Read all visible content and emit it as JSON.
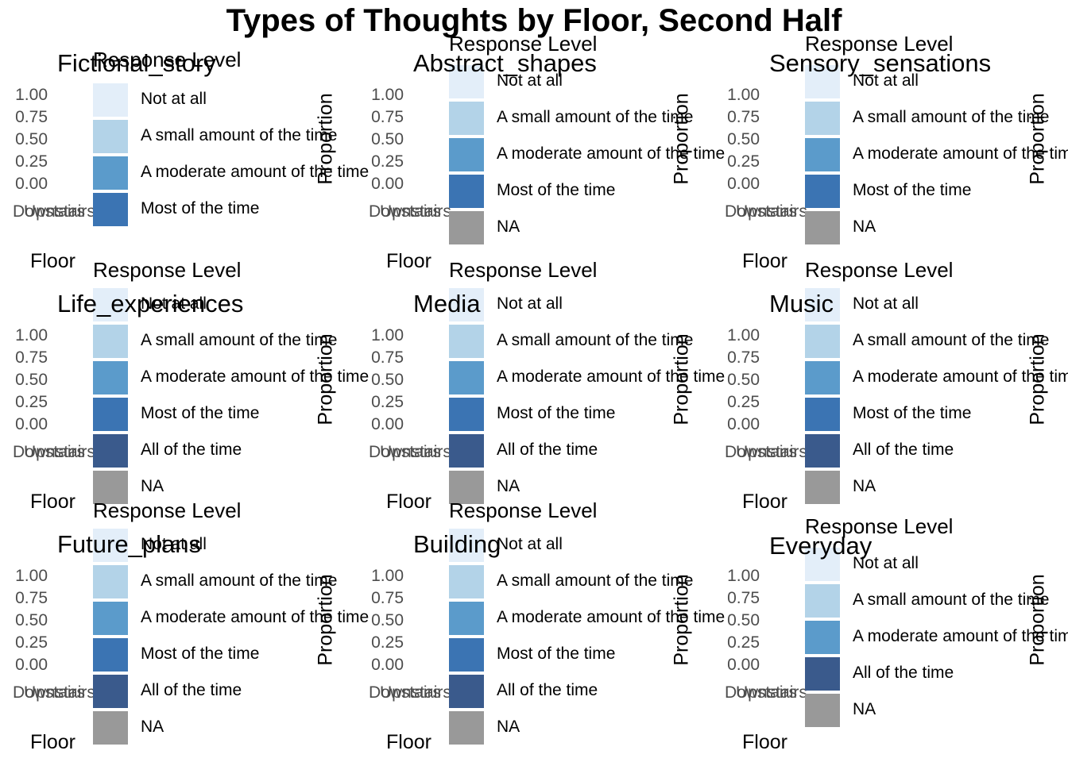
{
  "figure": {
    "title": "Types of Thoughts by Floor, Second Half"
  },
  "colors": {
    "Not at all": "#e3eef9",
    "A small amount of the time": "#b3d3e8",
    "A moderate amount of the time": "#5b9bcb",
    "Most of the time": "#3b74b3",
    "All of the time": "#3a5a8c",
    "NA": "#999999"
  },
  "chart_data": [
    {
      "type": "bar",
      "title": "Fictional_story",
      "xlabel": "Floor",
      "ylabel": "Proportion",
      "categories": [
        "Downstairs",
        "Upstairs"
      ],
      "yticks": [
        "1.00",
        "0.75",
        "0.50",
        "0.25",
        "0.00"
      ],
      "ylim": [
        0,
        1
      ],
      "legend_title": "Response Level",
      "legend": [
        "Not at all",
        "A small amount of the time",
        "A moderate amount of the time",
        "Most of the time"
      ],
      "legend_placement": "right",
      "grid": false,
      "series": []
    },
    {
      "type": "bar",
      "title": "Abstract_shapes",
      "xlabel": "Floor",
      "ylabel": "Proportion",
      "categories": [
        "Downstairs",
        "Upstairs"
      ],
      "yticks": [
        "1.00",
        "0.75",
        "0.50",
        "0.25",
        "0.00"
      ],
      "ylim": [
        0,
        1
      ],
      "legend_title": "Response Level",
      "legend": [
        "Not at all",
        "A small amount of the time",
        "A moderate amount of the time",
        "Most of the time",
        "NA"
      ],
      "legend_placement": "right",
      "grid": false,
      "series": []
    },
    {
      "type": "bar",
      "title": "Sensory_sensations",
      "xlabel": "Floor",
      "ylabel": "Proportion",
      "categories": [
        "Downstairs",
        "Upstairs"
      ],
      "yticks": [
        "1.00",
        "0.75",
        "0.50",
        "0.25",
        "0.00"
      ],
      "ylim": [
        0,
        1
      ],
      "legend_title": "Response Level",
      "legend": [
        "Not at all",
        "A small amount of the time",
        "A moderate amount of the time",
        "Most of the time",
        "NA"
      ],
      "legend_placement": "right",
      "grid": false,
      "series": []
    },
    {
      "type": "bar",
      "title": "Life_experiences",
      "xlabel": "Floor",
      "ylabel": "Proportion",
      "categories": [
        "Downstairs",
        "Upstairs"
      ],
      "yticks": [
        "1.00",
        "0.75",
        "0.50",
        "0.25",
        "0.00"
      ],
      "ylim": [
        0,
        1
      ],
      "legend_title": "Response Level",
      "legend": [
        "Not at all",
        "A small amount of the time",
        "A moderate amount of the time",
        "Most of the time",
        "All of the time",
        "NA"
      ],
      "legend_placement": "right",
      "grid": false,
      "series": []
    },
    {
      "type": "bar",
      "title": "Media",
      "xlabel": "Floor",
      "ylabel": "Proportion",
      "categories": [
        "Downstairs",
        "Upstairs"
      ],
      "yticks": [
        "1.00",
        "0.75",
        "0.50",
        "0.25",
        "0.00"
      ],
      "ylim": [
        0,
        1
      ],
      "legend_title": "Response Level",
      "legend": [
        "Not at all",
        "A small amount of the time",
        "A moderate amount of the time",
        "Most of the time",
        "All of the time",
        "NA"
      ],
      "legend_placement": "right",
      "grid": false,
      "series": []
    },
    {
      "type": "bar",
      "title": "Music",
      "xlabel": "Floor",
      "ylabel": "Proportion",
      "categories": [
        "Downstairs",
        "Upstairs"
      ],
      "yticks": [
        "1.00",
        "0.75",
        "0.50",
        "0.25",
        "0.00"
      ],
      "ylim": [
        0,
        1
      ],
      "legend_title": "Response Level",
      "legend": [
        "Not at all",
        "A small amount of the time",
        "A moderate amount of the time",
        "Most of the time",
        "All of the time",
        "NA"
      ],
      "legend_placement": "right",
      "grid": false,
      "series": []
    },
    {
      "type": "bar",
      "title": "Future_plans",
      "xlabel": "Floor",
      "ylabel": "Proportion",
      "categories": [
        "Downstairs",
        "Upstairs"
      ],
      "yticks": [
        "1.00",
        "0.75",
        "0.50",
        "0.25",
        "0.00"
      ],
      "ylim": [
        0,
        1
      ],
      "legend_title": "Response Level",
      "legend": [
        "Not at all",
        "A small amount of the time",
        "A moderate amount of the time",
        "Most of the time",
        "All of the time",
        "NA"
      ],
      "legend_placement": "right",
      "grid": false,
      "series": []
    },
    {
      "type": "bar",
      "title": "Building",
      "xlabel": "Floor",
      "ylabel": "Proportion",
      "categories": [
        "Downstairs",
        "Upstairs"
      ],
      "yticks": [
        "1.00",
        "0.75",
        "0.50",
        "0.25",
        "0.00"
      ],
      "ylim": [
        0,
        1
      ],
      "legend_title": "Response Level",
      "legend": [
        "Not at all",
        "A small amount of the time",
        "A moderate amount of the time",
        "Most of the time",
        "All of the time",
        "NA"
      ],
      "legend_placement": "right",
      "grid": false,
      "series": []
    },
    {
      "type": "bar",
      "title": "Everyday",
      "xlabel": "Floor",
      "ylabel": "Proportion",
      "categories": [
        "Downstairs",
        "Upstairs"
      ],
      "yticks": [
        "1.00",
        "0.75",
        "0.50",
        "0.25",
        "0.00"
      ],
      "ylim": [
        0,
        1
      ],
      "legend_title": "Response Level",
      "legend": [
        "Not at all",
        "A small amount of the time",
        "A moderate amount of the time",
        "All of the time",
        "NA"
      ],
      "legend_placement": "right",
      "grid": false,
      "series": []
    }
  ]
}
